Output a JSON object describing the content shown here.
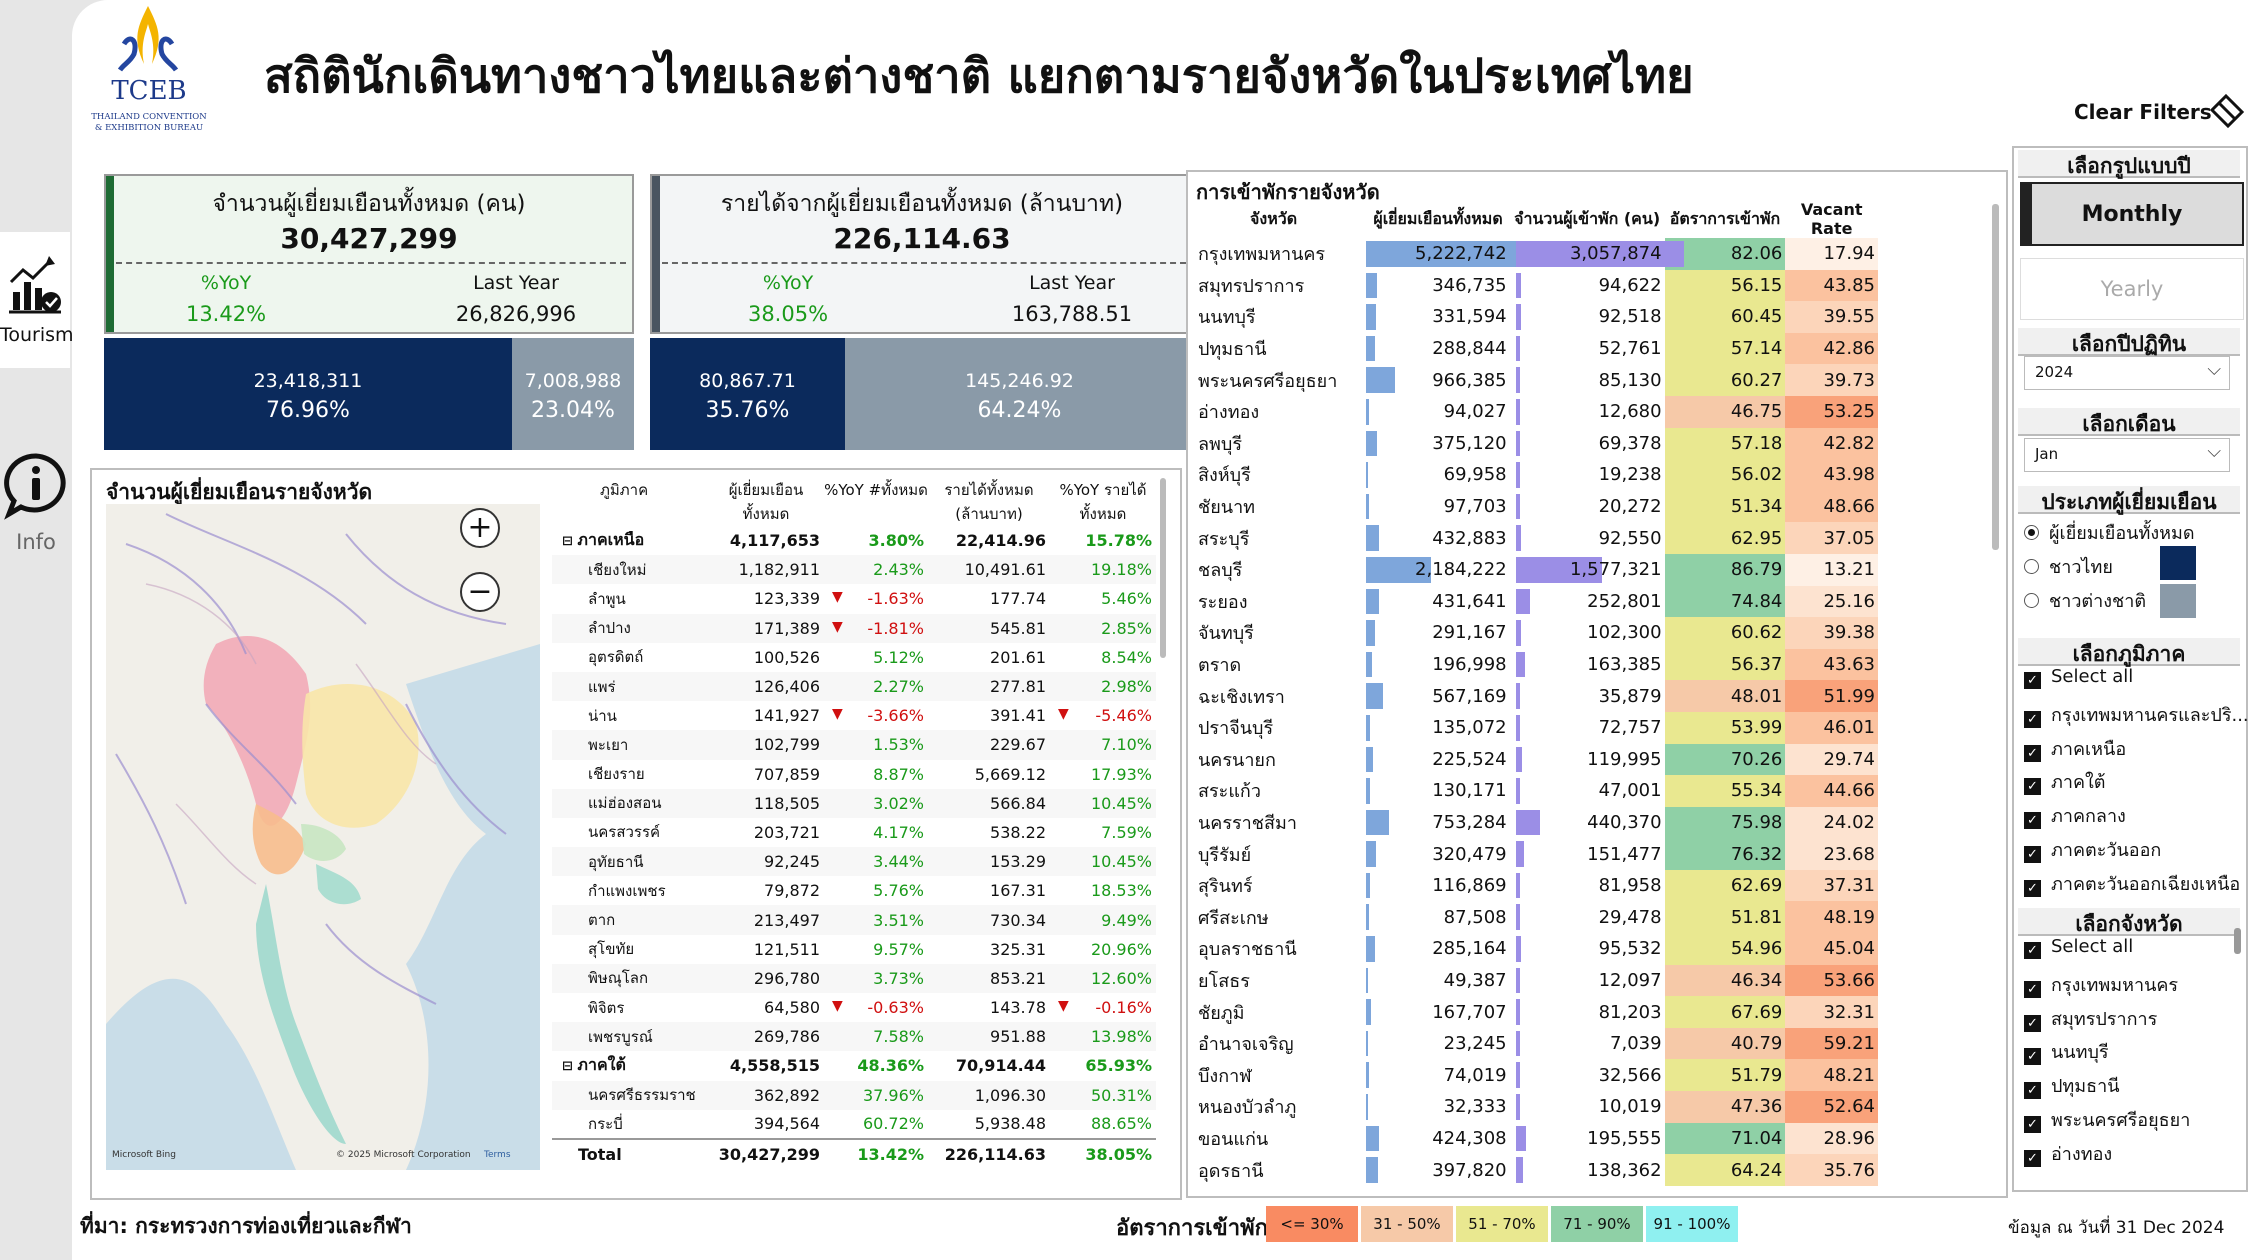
{
  "sidebar": {
    "tourism_label": "Tourism",
    "info_label": "Info"
  },
  "header": {
    "logo_text": "TCEB",
    "logo_sub1": "THAILAND CONVENTION",
    "logo_sub2": "& EXHIBITION BUREAU",
    "title": "สถิตินักเดินทางชาวไทยและต่างชาติ แยกตามรายจังหวัดในประเทศไทย",
    "clear_filters": "Clear Filters"
  },
  "kpi_visitors": {
    "title": "จำนวนผู้เยี่ยมเยือนทั้งหมด (คน)",
    "value": "30,427,299",
    "yoy_label": "%YoY",
    "yoy_value": "13.42%",
    "ly_label": "Last Year",
    "ly_value": "26,826,996",
    "thai_value": "23,418,311",
    "thai_pct": "76.96%",
    "foreign_value": "7,008,988",
    "foreign_pct": "23.04%",
    "thai_share": 0.7696
  },
  "kpi_revenue": {
    "title": "รายได้จากผู้เยี่ยมเยือนทั้งหมด (ล้านบาท)",
    "value": "226,114.63",
    "yoy_label": "%YoY",
    "yoy_value": "38.05%",
    "ly_label": "Last Year",
    "ly_value": "163,788.51",
    "thai_value": "80,867.71",
    "thai_pct": "35.76%",
    "foreign_value": "145,246.92",
    "foreign_pct": "64.24%",
    "thai_share": 0.3576
  },
  "colors": {
    "thai": "#0b2a5c",
    "foreign": "#8a9aa8",
    "accent_green": "#1e6b34",
    "accent_gray": "#4a5560"
  },
  "map_panel": {
    "title": "จำนวนผู้เยี่ยมเยือนรายจังหวัด",
    "copyright": "© 2025 Microsoft Corporation",
    "terms": "Terms",
    "bing": "Microsoft Bing"
  },
  "prov_table": {
    "headers": [
      "ภูมิภาค",
      "ผู้เยี่ยมเยือน ทั้งหมด",
      "%YoY #ทั้งหมด",
      "รายได้ทั้งหมด (ล้านบาท)",
      "%YoY รายได้ ทั้งหมด"
    ],
    "rows": [
      {
        "name": "ภาคเหนือ",
        "visitors": "4,117,653",
        "yoy": "3.80%",
        "rev": "22,414.96",
        "ryoy": "15.78%",
        "region": true,
        "yneg": false,
        "rneg": false
      },
      {
        "name": "เชียงใหม่",
        "visitors": "1,182,911",
        "yoy": "2.43%",
        "rev": "10,491.61",
        "ryoy": "19.18%",
        "region": false,
        "yneg": false,
        "rneg": false
      },
      {
        "name": "ลำพูน",
        "visitors": "123,339",
        "yoy": "-1.63%",
        "rev": "177.74",
        "ryoy": "5.46%",
        "region": false,
        "yneg": true,
        "rneg": false
      },
      {
        "name": "ลำปาง",
        "visitors": "171,389",
        "yoy": "-1.81%",
        "rev": "545.81",
        "ryoy": "2.85%",
        "region": false,
        "yneg": true,
        "rneg": false
      },
      {
        "name": "อุตรดิตถ์",
        "visitors": "100,526",
        "yoy": "5.12%",
        "rev": "201.61",
        "ryoy": "8.54%",
        "region": false,
        "yneg": false,
        "rneg": false
      },
      {
        "name": "แพร่",
        "visitors": "126,406",
        "yoy": "2.27%",
        "rev": "277.81",
        "ryoy": "2.98%",
        "region": false,
        "yneg": false,
        "rneg": false
      },
      {
        "name": "น่าน",
        "visitors": "141,927",
        "yoy": "-3.66%",
        "rev": "391.41",
        "ryoy": "-5.46%",
        "region": false,
        "yneg": true,
        "rneg": true
      },
      {
        "name": "พะเยา",
        "visitors": "102,799",
        "yoy": "1.53%",
        "rev": "229.67",
        "ryoy": "7.10%",
        "region": false,
        "yneg": false,
        "rneg": false
      },
      {
        "name": "เชียงราย",
        "visitors": "707,859",
        "yoy": "8.87%",
        "rev": "5,669.12",
        "ryoy": "17.93%",
        "region": false,
        "yneg": false,
        "rneg": false
      },
      {
        "name": "แม่ฮ่องสอน",
        "visitors": "118,505",
        "yoy": "3.02%",
        "rev": "566.84",
        "ryoy": "10.45%",
        "region": false,
        "yneg": false,
        "rneg": false
      },
      {
        "name": "นครสวรรค์",
        "visitors": "203,721",
        "yoy": "4.17%",
        "rev": "538.22",
        "ryoy": "7.59%",
        "region": false,
        "yneg": false,
        "rneg": false
      },
      {
        "name": "อุทัยธานี",
        "visitors": "92,245",
        "yoy": "3.44%",
        "rev": "153.29",
        "ryoy": "10.45%",
        "region": false,
        "yneg": false,
        "rneg": false
      },
      {
        "name": "กำแพงเพชร",
        "visitors": "79,872",
        "yoy": "5.76%",
        "rev": "167.31",
        "ryoy": "18.53%",
        "region": false,
        "yneg": false,
        "rneg": false
      },
      {
        "name": "ตาก",
        "visitors": "213,497",
        "yoy": "3.51%",
        "rev": "730.34",
        "ryoy": "9.49%",
        "region": false,
        "yneg": false,
        "rneg": false
      },
      {
        "name": "สุโขทัย",
        "visitors": "121,511",
        "yoy": "9.57%",
        "rev": "325.31",
        "ryoy": "20.96%",
        "region": false,
        "yneg": false,
        "rneg": false
      },
      {
        "name": "พิษณุโลก",
        "visitors": "296,780",
        "yoy": "3.73%",
        "rev": "853.21",
        "ryoy": "12.60%",
        "region": false,
        "yneg": false,
        "rneg": false
      },
      {
        "name": "พิจิตร",
        "visitors": "64,580",
        "yoy": "-0.63%",
        "rev": "143.78",
        "ryoy": "-0.16%",
        "region": false,
        "yneg": true,
        "rneg": true
      },
      {
        "name": "เพชรบูรณ์",
        "visitors": "269,786",
        "yoy": "7.58%",
        "rev": "951.88",
        "ryoy": "13.98%",
        "region": false,
        "yneg": false,
        "rneg": false
      },
      {
        "name": "ภาคใต้",
        "visitors": "4,558,515",
        "yoy": "48.36%",
        "rev": "70,914.44",
        "ryoy": "65.93%",
        "region": true,
        "yneg": false,
        "rneg": false
      },
      {
        "name": "นครศรีธรรมราช",
        "visitors": "362,892",
        "yoy": "37.96%",
        "rev": "1,096.30",
        "ryoy": "50.31%",
        "region": false,
        "yneg": false,
        "rneg": false
      },
      {
        "name": "กระบี่",
        "visitors": "394,564",
        "yoy": "60.72%",
        "rev": "5,938.48",
        "ryoy": "88.65%",
        "region": false,
        "yneg": false,
        "rneg": false
      }
    ],
    "total": {
      "name": "Total",
      "visitors": "30,427,299",
      "yoy": "13.42%",
      "rev": "226,114.63",
      "ryoy": "38.05%"
    }
  },
  "occ_panel": {
    "title": "การเข้าพักรายจังหวัด",
    "headers": [
      "จังหวัด",
      "ผู้เยี่ยมเยือนทั้งหมด",
      "จำนวนผู้เข้าพัก (คน)",
      "อัตราการเข้าพัก",
      "Vacant Rate"
    ],
    "max_visitors": 5222742,
    "max_guests": 3057874,
    "rows": [
      {
        "prov": "กรุงเทพมหานคร",
        "visitors": "5,222,742",
        "guests": "3,057,874",
        "occ": "82.06",
        "vac": "17.94",
        "vn": 5222742,
        "gn": 3057874
      },
      {
        "prov": "สมุทรปราการ",
        "visitors": "346,735",
        "guests": "94,622",
        "occ": "56.15",
        "vac": "43.85",
        "vn": 346735,
        "gn": 94622
      },
      {
        "prov": "นนทบุรี",
        "visitors": "331,594",
        "guests": "92,518",
        "occ": "60.45",
        "vac": "39.55",
        "vn": 331594,
        "gn": 92518
      },
      {
        "prov": "ปทุมธานี",
        "visitors": "288,844",
        "guests": "52,761",
        "occ": "57.14",
        "vac": "42.86",
        "vn": 288844,
        "gn": 52761
      },
      {
        "prov": "พระนครศรีอยุธยา",
        "visitors": "966,385",
        "guests": "85,130",
        "occ": "60.27",
        "vac": "39.73",
        "vn": 966385,
        "gn": 85130
      },
      {
        "prov": "อ่างทอง",
        "visitors": "94,027",
        "guests": "12,680",
        "occ": "46.75",
        "vac": "53.25",
        "vn": 94027,
        "gn": 12680
      },
      {
        "prov": "ลพบุรี",
        "visitors": "375,120",
        "guests": "69,378",
        "occ": "57.18",
        "vac": "42.82",
        "vn": 375120,
        "gn": 69378
      },
      {
        "prov": "สิงห์บุรี",
        "visitors": "69,958",
        "guests": "19,238",
        "occ": "56.02",
        "vac": "43.98",
        "vn": 69958,
        "gn": 19238
      },
      {
        "prov": "ชัยนาท",
        "visitors": "97,703",
        "guests": "20,272",
        "occ": "51.34",
        "vac": "48.66",
        "vn": 97703,
        "gn": 20272
      },
      {
        "prov": "สระบุรี",
        "visitors": "432,883",
        "guests": "92,550",
        "occ": "62.95",
        "vac": "37.05",
        "vn": 432883,
        "gn": 92550
      },
      {
        "prov": "ชลบุรี",
        "visitors": "2,184,222",
        "guests": "1,577,321",
        "occ": "86.79",
        "vac": "13.21",
        "vn": 2184222,
        "gn": 1577321
      },
      {
        "prov": "ระยอง",
        "visitors": "431,641",
        "guests": "252,801",
        "occ": "74.84",
        "vac": "25.16",
        "vn": 431641,
        "gn": 252801
      },
      {
        "prov": "จันทบุรี",
        "visitors": "291,167",
        "guests": "102,300",
        "occ": "60.62",
        "vac": "39.38",
        "vn": 291167,
        "gn": 102300
      },
      {
        "prov": "ตราด",
        "visitors": "196,998",
        "guests": "163,385",
        "occ": "56.37",
        "vac": "43.63",
        "vn": 196998,
        "gn": 163385
      },
      {
        "prov": "ฉะเชิงเทรา",
        "visitors": "567,169",
        "guests": "35,879",
        "occ": "48.01",
        "vac": "51.99",
        "vn": 567169,
        "gn": 35879
      },
      {
        "prov": "ปราจีนบุรี",
        "visitors": "135,072",
        "guests": "72,757",
        "occ": "53.99",
        "vac": "46.01",
        "vn": 135072,
        "gn": 72757
      },
      {
        "prov": "นครนายก",
        "visitors": "225,524",
        "guests": "119,995",
        "occ": "70.26",
        "vac": "29.74",
        "vn": 225524,
        "gn": 119995
      },
      {
        "prov": "สระแก้ว",
        "visitors": "130,171",
        "guests": "47,001",
        "occ": "55.34",
        "vac": "44.66",
        "vn": 130171,
        "gn": 47001
      },
      {
        "prov": "นครราชสีมา",
        "visitors": "753,284",
        "guests": "440,370",
        "occ": "75.98",
        "vac": "24.02",
        "vn": 753284,
        "gn": 440370
      },
      {
        "prov": "บุรีรัมย์",
        "visitors": "320,479",
        "guests": "151,477",
        "occ": "76.32",
        "vac": "23.68",
        "vn": 320479,
        "gn": 151477
      },
      {
        "prov": "สุรินทร์",
        "visitors": "116,869",
        "guests": "81,958",
        "occ": "62.69",
        "vac": "37.31",
        "vn": 116869,
        "gn": 81958
      },
      {
        "prov": "ศรีสะเกษ",
        "visitors": "87,508",
        "guests": "29,478",
        "occ": "51.81",
        "vac": "48.19",
        "vn": 87508,
        "gn": 29478
      },
      {
        "prov": "อุบลราชธานี",
        "visitors": "285,164",
        "guests": "95,532",
        "occ": "54.96",
        "vac": "45.04",
        "vn": 285164,
        "gn": 95532
      },
      {
        "prov": "ยโสธร",
        "visitors": "49,387",
        "guests": "12,097",
        "occ": "46.34",
        "vac": "53.66",
        "vn": 49387,
        "gn": 12097
      },
      {
        "prov": "ชัยภูมิ",
        "visitors": "167,707",
        "guests": "81,203",
        "occ": "67.69",
        "vac": "32.31",
        "vn": 167707,
        "gn": 81203
      },
      {
        "prov": "อำนาจเจริญ",
        "visitors": "23,245",
        "guests": "7,039",
        "occ": "40.79",
        "vac": "59.21",
        "vn": 23245,
        "gn": 7039
      },
      {
        "prov": "บึงกาฬ",
        "visitors": "74,019",
        "guests": "32,566",
        "occ": "51.79",
        "vac": "48.21",
        "vn": 74019,
        "gn": 32566
      },
      {
        "prov": "หนองบัวลำภู",
        "visitors": "32,333",
        "guests": "10,019",
        "occ": "47.36",
        "vac": "52.64",
        "vn": 32333,
        "gn": 10019
      },
      {
        "prov": "ขอนแก่น",
        "visitors": "424,308",
        "guests": "195,555",
        "occ": "71.04",
        "vac": "28.96",
        "vn": 424308,
        "gn": 195555
      },
      {
        "prov": "อุดรธานี",
        "visitors": "397,820",
        "guests": "138,362",
        "occ": "64.24",
        "vac": "35.76",
        "vn": 397820,
        "gn": 138362
      }
    ]
  },
  "filters": {
    "year_type_title": "เลือกรูปแบบปี",
    "monthly": "Monthly",
    "yearly": "Yearly",
    "year_title": "เลือกปีปฏิทิน",
    "year_value": "2024",
    "month_title": "เลือกเดือน",
    "month_value": "Jan",
    "visitor_type_title": "ประเภทผู้เยี่ยมเยือน",
    "visitor_types": [
      "ผู้เยี่ยมเยือนทั้งหมด",
      "ชาวไทย",
      "ชาวต่างชาติ"
    ],
    "region_title": "เลือกภูมิภาค",
    "regions": [
      "Select all",
      "กรุงเทพมหานครและปริ...",
      "ภาคเหนือ",
      "ภาคใต้",
      "ภาคกลาง",
      "ภาคตะวันออก",
      "ภาคตะวันออกเฉียงเหนือ"
    ],
    "province_title": "เลือกจังหวัด",
    "provinces": [
      "Select all",
      "กรุงเทพมหานคร",
      "สมุทรปราการ",
      "นนทบุรี",
      "ปทุมธานี",
      "พระนครศรีอยุธยา",
      "อ่างทอง"
    ]
  },
  "footer": {
    "source": "ที่มา: กระทรวงการท่องเที่ยวและกีฬา",
    "legend_title": "อัตราการเข้าพัก",
    "legend": [
      {
        "label": "<= 30%",
        "color": "#f98b62"
      },
      {
        "label": "31 - 50%",
        "color": "#f6c9a8"
      },
      {
        "label": "51 - 70%",
        "color": "#e9e890"
      },
      {
        "label": "71 - 90%",
        "color": "#8fd0a6"
      },
      {
        "label": "91 - 100%",
        "color": "#8ff0f0"
      }
    ],
    "date_note": "ข้อมูล ณ วันที่ 31 Dec 2024"
  }
}
